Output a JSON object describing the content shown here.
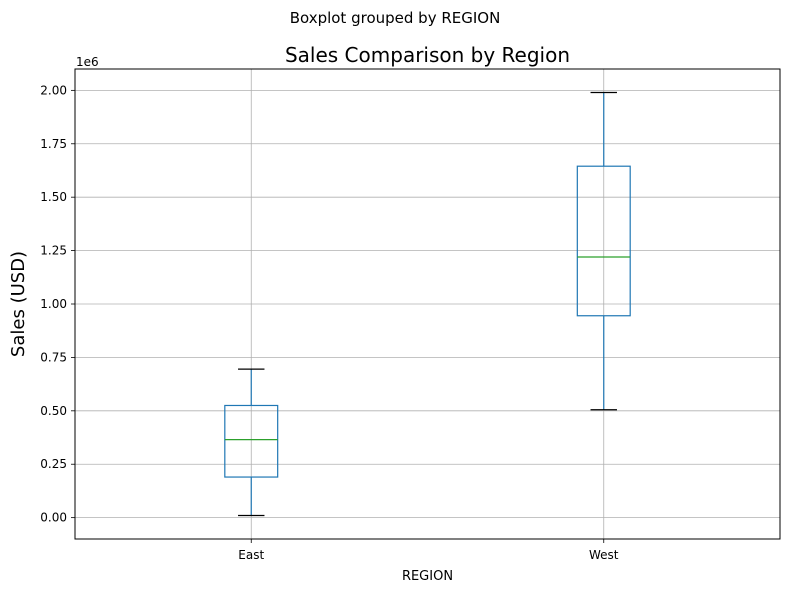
{
  "chart_data": {
    "type": "box",
    "suptitle": "Boxplot grouped by REGION",
    "title": "Sales Comparison by Region",
    "xlabel": "REGION",
    "ylabel": "Sales (USD)",
    "y_offset_text": "1e6",
    "ylim": [
      -0.1,
      2.1
    ],
    "y_ticks": [
      0.0,
      0.25,
      0.5,
      0.75,
      1.0,
      1.25,
      1.5,
      1.75,
      2.0
    ],
    "y_tick_labels": [
      "0.00",
      "0.25",
      "0.50",
      "0.75",
      "1.00",
      "1.25",
      "1.50",
      "1.75",
      "2.00"
    ],
    "grid": true,
    "categories": [
      "East",
      "West"
    ],
    "boxes": [
      {
        "category": "East",
        "whisker_low": 0.01,
        "q1": 0.19,
        "median": 0.365,
        "q3": 0.525,
        "whisker_high": 0.695
      },
      {
        "category": "West",
        "whisker_low": 0.505,
        "q1": 0.945,
        "median": 1.22,
        "q3": 1.645,
        "whisker_high": 1.99
      }
    ],
    "colors": {
      "box": "#1f77b4",
      "median": "#2ca02c",
      "caps": "#000000",
      "grid": "#b0b0b0"
    }
  }
}
